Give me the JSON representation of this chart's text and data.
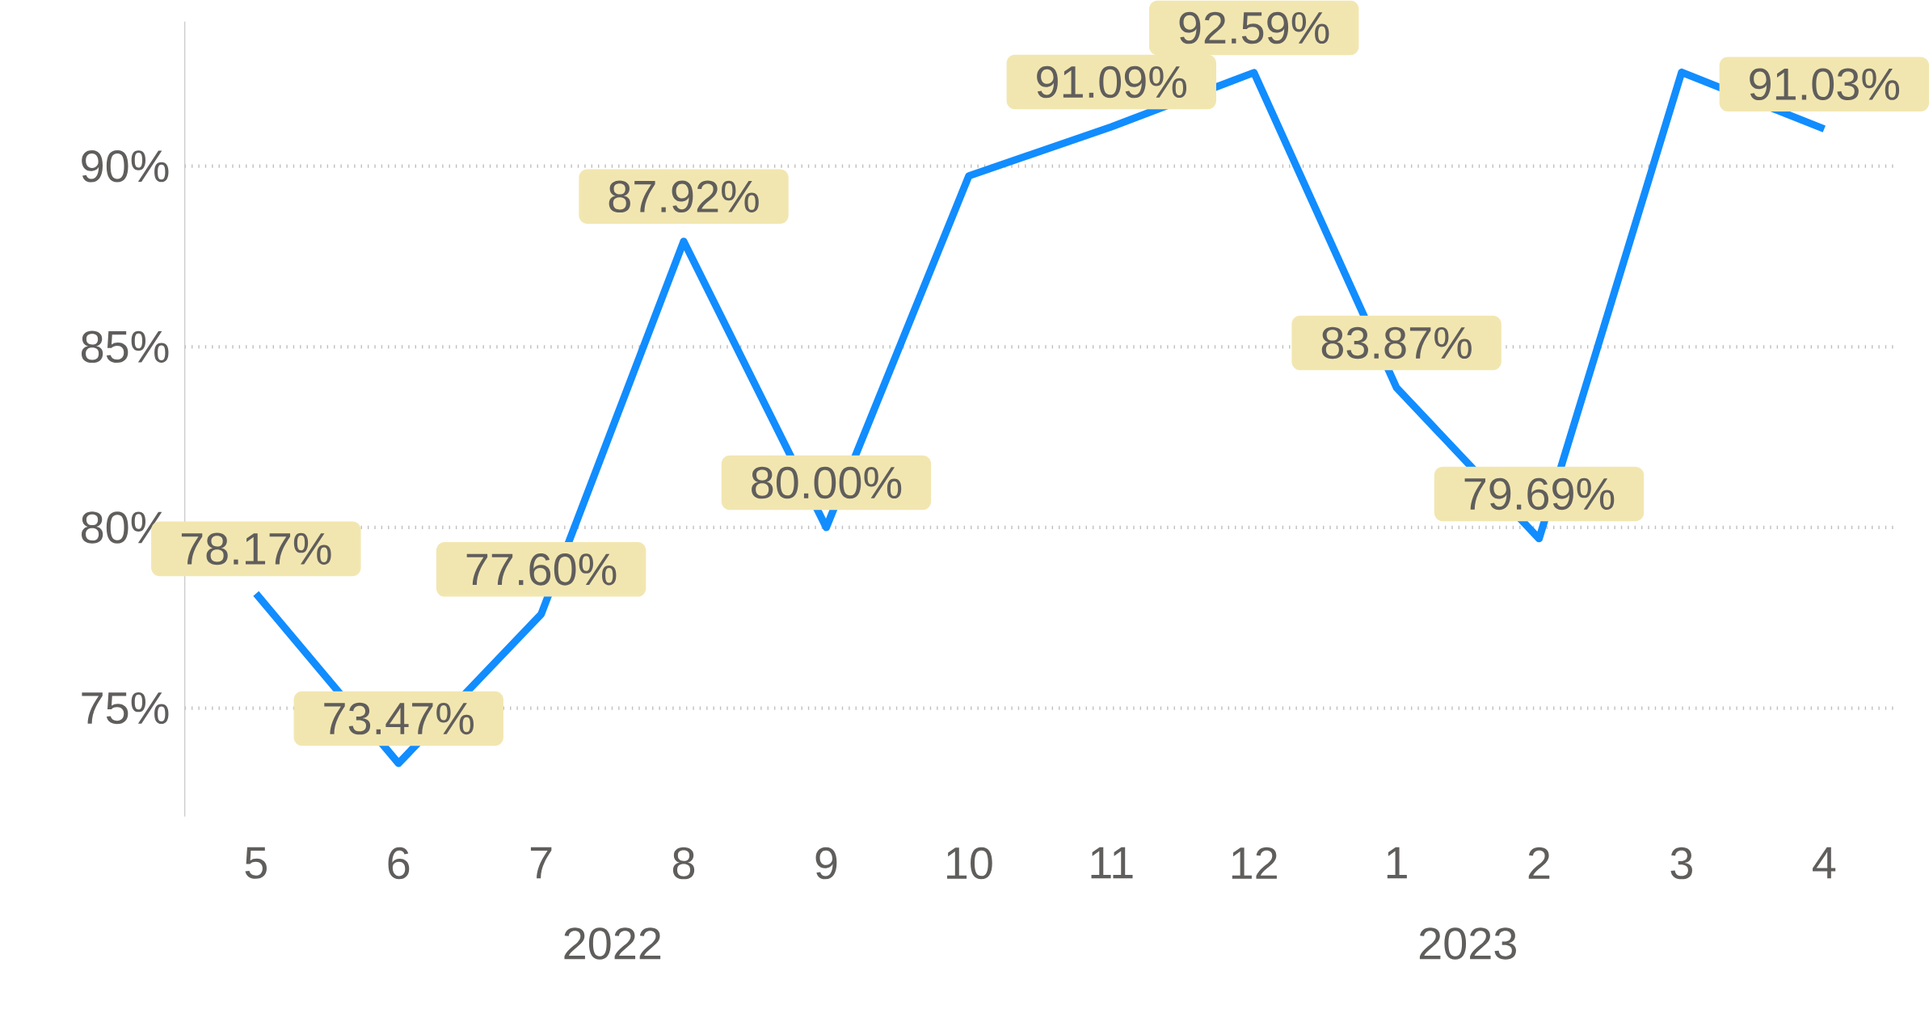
{
  "chart_data": {
    "type": "line",
    "categories": [
      "5",
      "6",
      "7",
      "8",
      "9",
      "10",
      "11",
      "12",
      "1",
      "2",
      "3",
      "4"
    ],
    "values": [
      78.17,
      73.47,
      77.6,
      87.92,
      80.0,
      89.73,
      91.09,
      92.59,
      83.87,
      79.69,
      92.6,
      91.03
    ],
    "value_labels": [
      "78.17%",
      "73.47%",
      "77.60%",
      "87.92%",
      "80.00%",
      null,
      "91.09%",
      "92.59%",
      "83.87%",
      "79.69%",
      null,
      "91.03%"
    ],
    "color": "#118dff",
    "ylim": [
      72,
      94
    ],
    "yticks": [
      {
        "value": 75,
        "label": "75%"
      },
      {
        "value": 80,
        "label": "80%"
      },
      {
        "value": 85,
        "label": "85%"
      },
      {
        "value": 90,
        "label": "90%"
      }
    ],
    "grid": "y",
    "marker": "none",
    "line_style": "solid",
    "annotations": [
      "2022",
      "2023"
    ]
  }
}
